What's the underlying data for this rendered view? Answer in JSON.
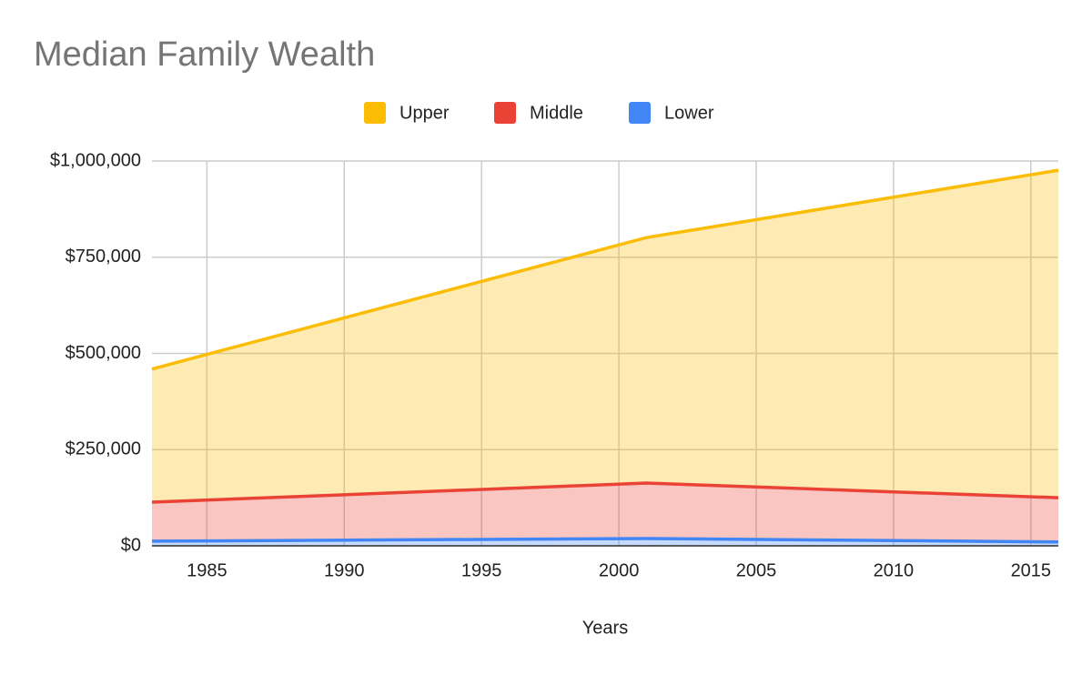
{
  "chart_data": {
    "type": "area",
    "stacked": true,
    "title": "Median Family Wealth",
    "x_label": "Years",
    "x": [
      1983,
      2001,
      2016
    ],
    "series": [
      {
        "name": "Upper",
        "color": "#fbbc04",
        "values": [
          346000,
          638000,
          851000
        ]
      },
      {
        "name": "Middle",
        "color": "#ea4335",
        "values": [
          101500,
          144000,
          115000
        ]
      },
      {
        "name": "Lower",
        "color": "#4285f4",
        "values": [
          12000,
          19000,
          10000
        ]
      }
    ],
    "xlim": [
      1983,
      2016
    ],
    "xticks": [
      1985,
      1990,
      1995,
      2000,
      2005,
      2010,
      2015
    ],
    "ylim": [
      0,
      1000000
    ],
    "yticks": [
      {
        "value": 0,
        "label": "$0"
      },
      {
        "value": 250000,
        "label": "$250,000"
      },
      {
        "value": 500000,
        "label": "$500,000"
      },
      {
        "value": 750000,
        "label": "$750,000"
      },
      {
        "value": 1000000,
        "label": "$1,000,000"
      }
    ],
    "grid": true,
    "legend": "top"
  }
}
